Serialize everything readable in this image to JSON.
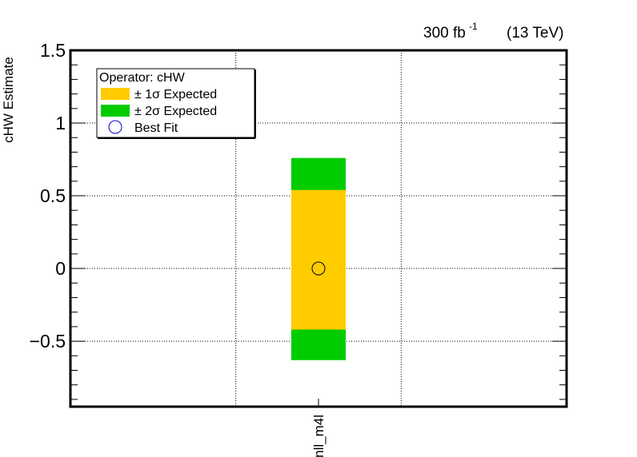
{
  "chart_data": {
    "type": "interval",
    "categories": [
      "nll_m4l"
    ],
    "ylabel": "cHW Estimate",
    "ylim": [
      -0.95,
      1.5
    ],
    "yticks": [
      -0.5,
      0,
      0.5,
      1,
      1.5
    ],
    "ytick_labels": [
      "−0.5",
      "0",
      "0.5",
      "1",
      "1.5"
    ],
    "grid": true,
    "series": [
      {
        "name": "± 2σ Expected",
        "color": "#00cc00",
        "low": [
          -0.63
        ],
        "high": [
          0.76
        ]
      },
      {
        "name": "± 1σ Expected",
        "color": "#ffcc00",
        "low": [
          -0.42
        ],
        "high": [
          0.54
        ]
      },
      {
        "name": "Best Fit",
        "marker": "circle",
        "values": [
          0.0
        ]
      }
    ],
    "legend": {
      "position": "top-left",
      "header": "Operator: cHW",
      "entries": [
        "± 1σ Expected",
        "± 2σ Expected",
        "Best Fit"
      ]
    },
    "annotations": {
      "lumi_value": "300 fb",
      "lumi_exp": "-1",
      "energy": "(13 TeV)"
    }
  }
}
